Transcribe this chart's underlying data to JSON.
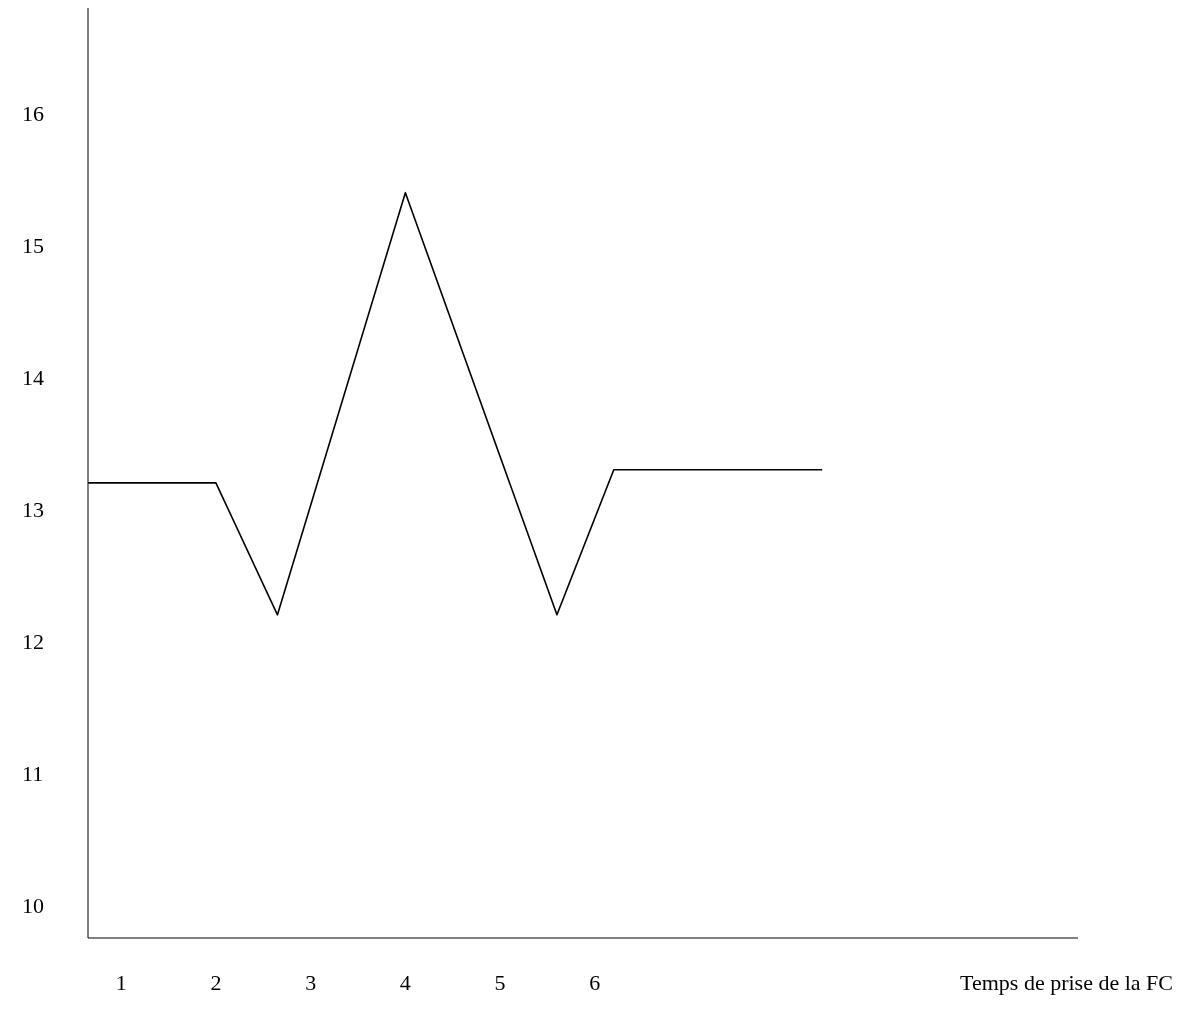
{
  "chart_data": {
    "type": "line",
    "xlabel": "Temps de prise de la FC",
    "x": [
      0.65,
      2,
      2.65,
      4,
      5.6,
      6.2,
      8.4
    ],
    "series": [
      {
        "color": "#000000",
        "values": [
          13.2,
          13.2,
          12.2,
          15.4,
          12.2,
          13.3,
          13.3
        ]
      }
    ],
    "xlim": [
      0.65,
      11.1
    ],
    "xticks": [
      1,
      2,
      3,
      4,
      5,
      6
    ],
    "ylim": [
      9.75,
      16.8
    ],
    "yticks": [
      10,
      11,
      12,
      13,
      14,
      15,
      16
    ],
    "grid": false,
    "legend": false,
    "marker": "none",
    "line_style": "solid"
  }
}
